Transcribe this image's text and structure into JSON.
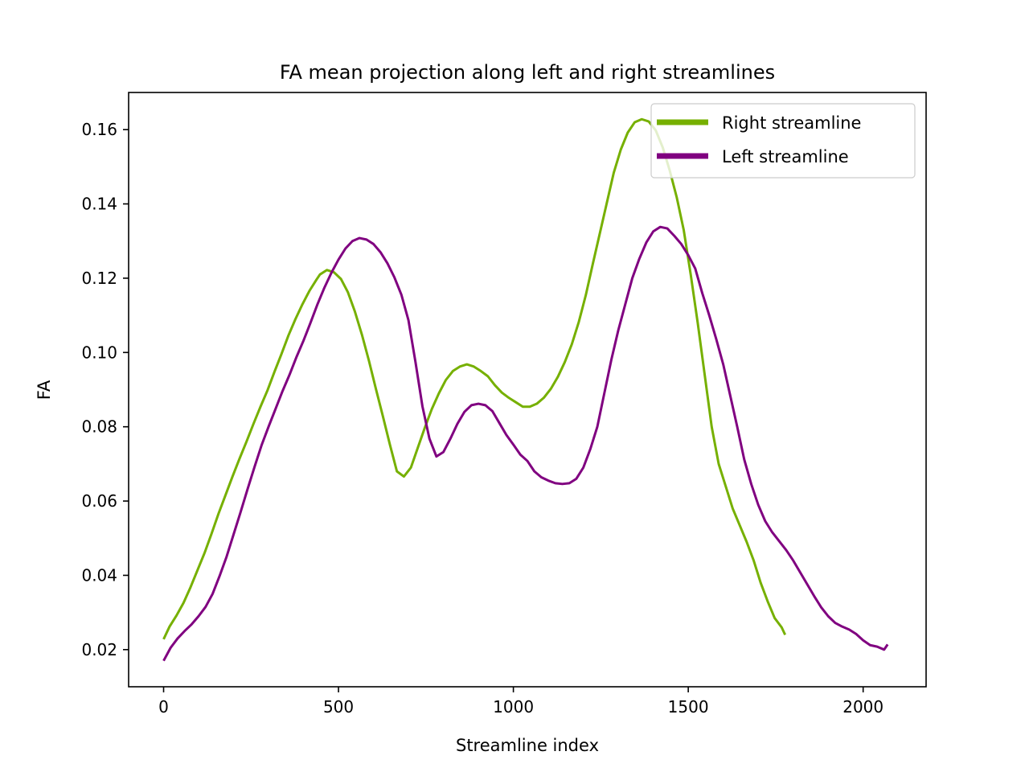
{
  "chart_data": {
    "type": "line",
    "title": "FA mean projection along left and right streamlines",
    "xlabel": "Streamline index",
    "ylabel": "FA",
    "xlim": [
      -100,
      2180
    ],
    "ylim": [
      0.01,
      0.17
    ],
    "xticks": [
      0,
      500,
      1000,
      1500,
      2000
    ],
    "yticks": [
      0.02,
      0.04,
      0.06,
      0.08,
      0.1,
      0.12,
      0.14,
      0.16
    ],
    "ytick_labels": [
      "0.02",
      "0.04",
      "0.06",
      "0.08",
      "0.10",
      "0.12",
      "0.14",
      "0.16"
    ],
    "grid": false,
    "legend_position": "top-right",
    "series": [
      {
        "name": "Right streamline",
        "color": "#76b000",
        "x": [
          0,
          17,
          37,
          57,
          77,
          97,
          117,
          137,
          157,
          177,
          197,
          217,
          237,
          257,
          277,
          297,
          317,
          337,
          357,
          377,
          397,
          417,
          437,
          447,
          467,
          487,
          507,
          527,
          547,
          567,
          587,
          607,
          627,
          647,
          667,
          687,
          707,
          727,
          747,
          767,
          787,
          807,
          827,
          847,
          867,
          887,
          907,
          927,
          947,
          967,
          987,
          1007,
          1027,
          1047,
          1067,
          1087,
          1107,
          1127,
          1147,
          1167,
          1187,
          1207,
          1227,
          1247,
          1267,
          1287,
          1307,
          1327,
          1347,
          1367,
          1387,
          1407,
          1427,
          1447,
          1467,
          1487,
          1507,
          1527,
          1547,
          1567,
          1587,
          1607,
          1627,
          1647,
          1667,
          1687,
          1707,
          1727,
          1747,
          1767,
          1777
        ],
        "y": [
          0.0228,
          0.0262,
          0.0292,
          0.0326,
          0.0368,
          0.0414,
          0.046,
          0.0512,
          0.0566,
          0.0616,
          0.0666,
          0.0714,
          0.076,
          0.0808,
          0.0854,
          0.0898,
          0.0948,
          0.0996,
          0.1046,
          0.109,
          0.113,
          0.1166,
          0.1196,
          0.121,
          0.1222,
          0.1216,
          0.1198,
          0.1162,
          0.111,
          0.1048,
          0.0978,
          0.0902,
          0.0828,
          0.0752,
          0.068,
          0.0666,
          0.069,
          0.0744,
          0.0798,
          0.0848,
          0.089,
          0.0926,
          0.095,
          0.0962,
          0.0968,
          0.0962,
          0.095,
          0.0936,
          0.0912,
          0.0892,
          0.0878,
          0.0866,
          0.0854,
          0.0854,
          0.0862,
          0.0878,
          0.0902,
          0.0934,
          0.0974,
          0.1022,
          0.1082,
          0.1154,
          0.1238,
          0.132,
          0.1402,
          0.1484,
          0.1546,
          0.1592,
          0.162,
          0.1628,
          0.1622,
          0.1598,
          0.1552,
          0.149,
          0.1418,
          0.133,
          0.121,
          0.108,
          0.094,
          0.08,
          0.07,
          0.064,
          0.058,
          0.0535,
          0.049,
          0.044,
          0.038,
          0.033,
          0.0285,
          0.026,
          0.024
        ]
      },
      {
        "name": "Left streamline",
        "color": "#800080",
        "x": [
          0,
          20,
          40,
          60,
          80,
          100,
          120,
          140,
          160,
          180,
          200,
          220,
          240,
          260,
          280,
          300,
          320,
          340,
          360,
          380,
          400,
          420,
          440,
          460,
          480,
          500,
          520,
          540,
          560,
          580,
          600,
          620,
          640,
          660,
          680,
          700,
          720,
          740,
          760,
          780,
          800,
          820,
          840,
          860,
          880,
          900,
          920,
          940,
          960,
          980,
          1000,
          1020,
          1040,
          1060,
          1080,
          1100,
          1120,
          1140,
          1160,
          1180,
          1200,
          1220,
          1240,
          1260,
          1280,
          1300,
          1320,
          1340,
          1360,
          1380,
          1400,
          1420,
          1440,
          1460,
          1480,
          1500,
          1520,
          1540,
          1560,
          1580,
          1600,
          1620,
          1640,
          1660,
          1680,
          1700,
          1720,
          1740,
          1760,
          1780,
          1800,
          1820,
          1840,
          1860,
          1880,
          1900,
          1920,
          1940,
          1960,
          1980,
          2000,
          2020,
          2040,
          2060,
          2070
        ],
        "y": [
          0.017,
          0.0205,
          0.023,
          0.025,
          0.0268,
          0.029,
          0.0315,
          0.035,
          0.0398,
          0.045,
          0.051,
          0.057,
          0.0632,
          0.0692,
          0.075,
          0.08,
          0.0848,
          0.0896,
          0.094,
          0.0988,
          0.1032,
          0.108,
          0.113,
          0.1175,
          0.1215,
          0.125,
          0.128,
          0.13,
          0.1308,
          0.1304,
          0.1292,
          0.127,
          0.124,
          0.1202,
          0.1155,
          0.1087,
          0.0975,
          0.0855,
          0.0768,
          0.072,
          0.0732,
          0.0768,
          0.0808,
          0.084,
          0.0858,
          0.0862,
          0.0858,
          0.0842,
          0.081,
          0.0778,
          0.0752,
          0.0725,
          0.0708,
          0.068,
          0.0664,
          0.0655,
          0.0648,
          0.0646,
          0.0648,
          0.066,
          0.069,
          0.074,
          0.08,
          0.089,
          0.098,
          0.106,
          0.113,
          0.12,
          0.1252,
          0.1296,
          0.1326,
          0.1338,
          0.1334,
          0.1314,
          0.1292,
          0.1262,
          0.1226,
          0.116,
          0.11,
          0.1036,
          0.0968,
          0.0884,
          0.08,
          0.0712,
          0.0646,
          0.059,
          0.0546,
          0.0516,
          0.0492,
          0.0468,
          0.044,
          0.0408,
          0.0376,
          0.0344,
          0.0314,
          0.029,
          0.0272,
          0.0262,
          0.0254,
          0.0242,
          0.0225,
          0.0212,
          0.0208,
          0.02,
          0.0214
        ]
      }
    ]
  }
}
